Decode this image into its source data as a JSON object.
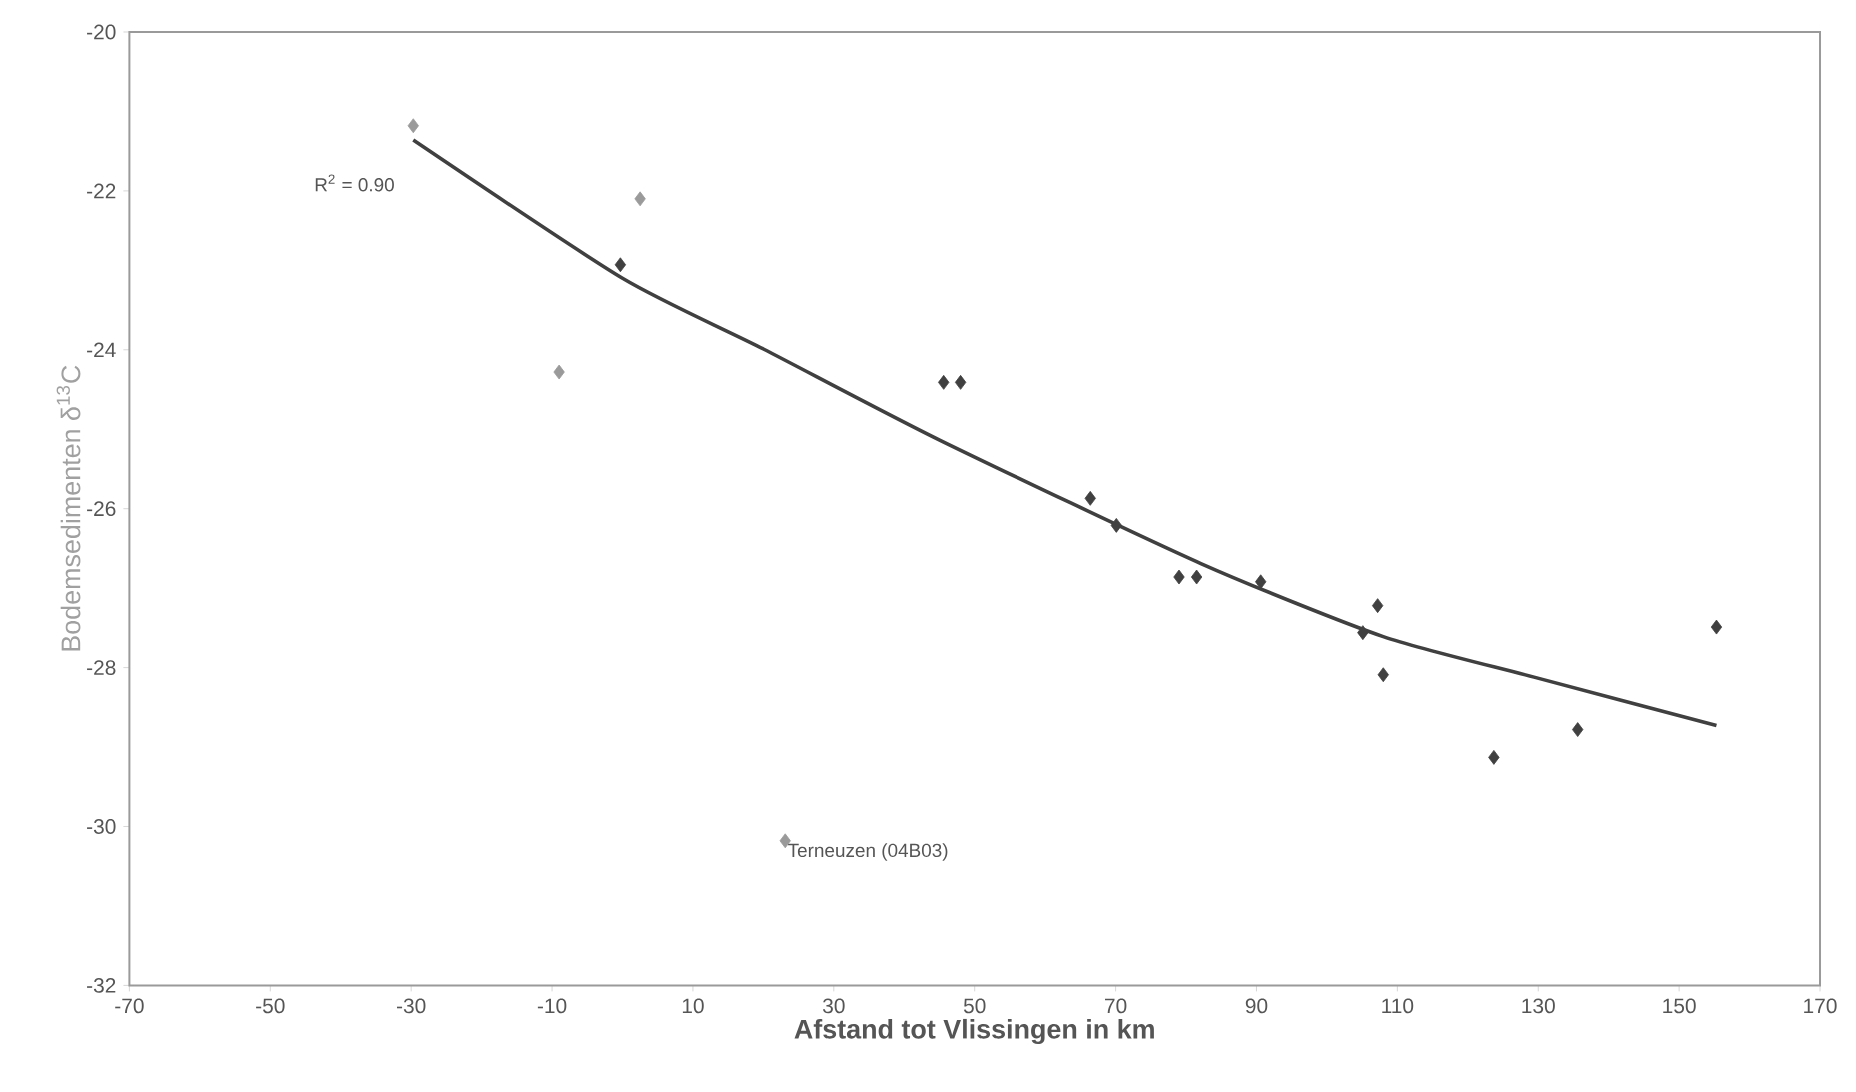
{
  "chart_data": {
    "type": "scatter",
    "xlabel": "Afstand tot Vlissingen in km",
    "ylabel": "Bodemsedimenten δ$^{13}$C",
    "xlim": [
      -70,
      170
    ],
    "xticks": [
      -70,
      -50,
      -30,
      -10,
      10,
      30,
      50,
      70,
      90,
      110,
      130,
      150,
      170
    ],
    "ylim": [
      -32,
      -20
    ],
    "yticks": [
      -32,
      -30,
      -28,
      -26,
      -24,
      -22,
      -20
    ],
    "marker": "diamond",
    "series": [
      {
        "color": "#9a9a9a",
        "x": [
          -29.7,
          -9,
          2.5,
          23.1
        ],
        "values": [
          -21.18,
          -24.28,
          -22.1,
          -30.18
        ]
      },
      {
        "color": "#404040",
        "x": [
          -0.3,
          45.6,
          48.0,
          66.4,
          70.1,
          79.0,
          81.5,
          90.6,
          105.1,
          107.2,
          108.0,
          123.7,
          135.6,
          155.3
        ],
        "values": [
          -22.93,
          -24.41,
          -24.41,
          -25.87,
          -26.21,
          -26.86,
          -26.86,
          -26.92,
          -27.56,
          -27.22,
          -28.09,
          -29.13,
          -28.78,
          -27.49
        ]
      },
      {
        "type": "line",
        "marker": "none",
        "color": "#404040",
        "x": [
          -29.7,
          0,
          20,
          45.1,
          82.1,
          108,
          129.4,
          155.3
        ],
        "values": [
          -21.36,
          -23.1,
          -23.99,
          -25.14,
          -26.69,
          -27.61,
          -28.12,
          -28.73
        ]
      }
    ],
    "annotations": [
      "R$^{2}$ = 0.90",
      {
        "text": "Terneuzen (04B03)",
        "x": 23.1,
        "y": -30.18
      }
    ]
  }
}
